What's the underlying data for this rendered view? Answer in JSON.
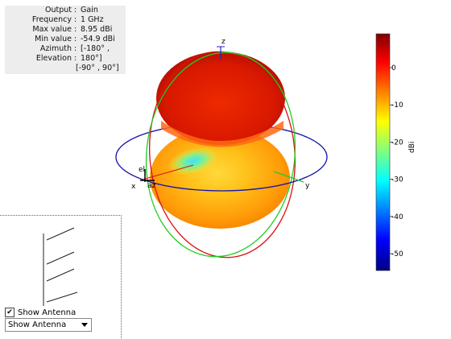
{
  "info": {
    "rows": [
      {
        "key": "Output",
        "value": "Gain"
      },
      {
        "key": "Frequency",
        "value": "1 GHz"
      },
      {
        "key": "Max value",
        "value": "8.95 dBi"
      },
      {
        "key": "Min value",
        "value": "-54.9 dBi"
      },
      {
        "key": "Azimuth",
        "value": "[-180° ,"
      },
      {
        "key": "Elevation",
        "value": "180°]"
      }
    ],
    "extra": "[-90° , 90°]"
  },
  "axes": {
    "z_label": "z",
    "x_label": "x",
    "y_label": "y",
    "el_label": "el",
    "az_label": "az"
  },
  "colorbar": {
    "label": "dBi",
    "ticks": [
      "0",
      "-10",
      "-20",
      "-30",
      "-40",
      "-50"
    ]
  },
  "controls": {
    "show_antenna_label": "Show Antenna",
    "checkbox_mark": "✔",
    "dropdown_value": "Show Antenna"
  },
  "colors": {
    "elevation_circle_red": "#dd1111",
    "elevation_circle_green": "#22cc22",
    "azimuth_circle_blue": "#1111aa",
    "z_axis": "#2222cc"
  }
}
